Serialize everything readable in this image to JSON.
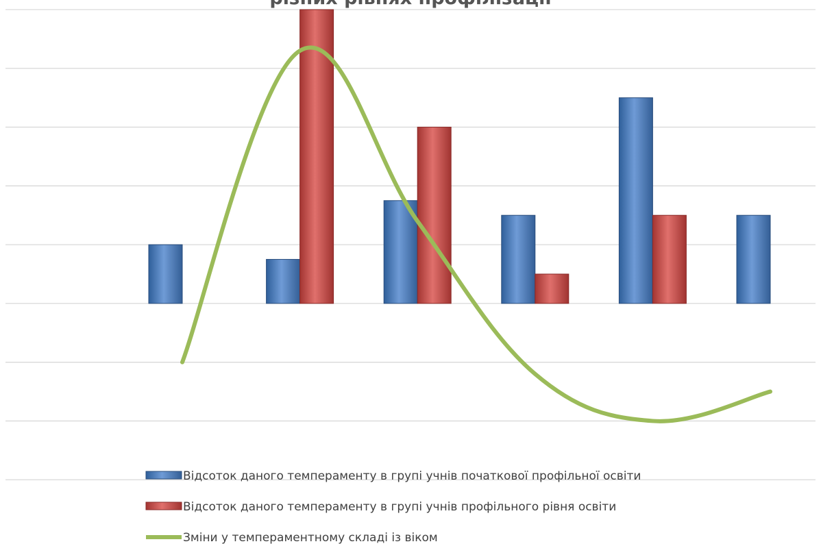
{
  "chart_data": {
    "type": "bar",
    "title": "різних рівнях профілізації",
    "categories": [
      "",
      "",
      "",
      "",
      "",
      ""
    ],
    "ylim": [
      -4,
      5
    ],
    "grid": true,
    "legend_position": "bottom",
    "series": [
      {
        "name": "Відсоток даного темпераменту в групі учнів початкової профільної освіти",
        "type": "bar",
        "values": [
          1,
          0.75,
          1.75,
          1.5,
          3.5,
          1.5
        ],
        "color": "#4f81bd"
      },
      {
        "name": "Відсоток даного темпераменту в групі учнів профільного рівня освіти",
        "type": "bar",
        "values": [
          0,
          5,
          3,
          0.5,
          1.5,
          0
        ],
        "color": "#c0504d"
      },
      {
        "name": "Зміни у темпераментному складі із віком",
        "type": "line",
        "values": [
          -1,
          4.3,
          1.4,
          -1.2,
          -2,
          -1.5
        ],
        "color": "#9bbb59"
      }
    ]
  }
}
